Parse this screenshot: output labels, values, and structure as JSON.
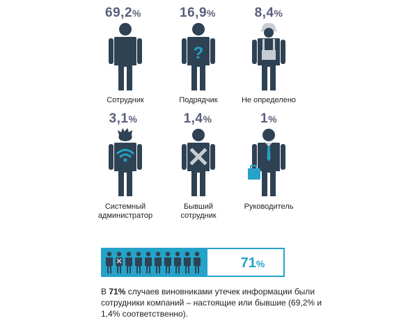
{
  "chart_data": {
    "type": "pictogram",
    "categories": [
      {
        "label": "Сотрудник",
        "value": 69.2,
        "display": "69,2",
        "icon": "employee-icon"
      },
      {
        "label": "Подрядчик",
        "value": 16.9,
        "display": "16,9",
        "icon": "contractor-question-icon"
      },
      {
        "label": "Не определено",
        "value": 8.4,
        "display": "8,4",
        "icon": "worker-helmet-icon"
      },
      {
        "label": "Системный администратор",
        "label_lines": [
          "Системный",
          "администратор"
        ],
        "value": 3.1,
        "display": "3,1",
        "icon": "sysadmin-wifi-icon"
      },
      {
        "label": "Бывший сотрудник",
        "label_lines": [
          "Бывший",
          "сотрудник"
        ],
        "value": 1.4,
        "display": "1,4",
        "icon": "former-employee-cross-icon"
      },
      {
        "label": "Руководитель",
        "value": 1,
        "display": "1",
        "icon": "manager-briefcase-icon"
      }
    ],
    "unit": "%",
    "summary_bar": {
      "value": 71,
      "display": "71",
      "people_count": 10,
      "highlight_color": "#25a3c8"
    }
  },
  "caption": {
    "prefix": "В ",
    "highlight": "71%",
    "rest": " случаев виновниками утечек информации были сотрудники компаний – настоящие или бывшие (69,2% и 1,4% соответственно)."
  },
  "colors": {
    "figure": "#2f4254",
    "accent": "#25a3c8",
    "percent_text": "#5b5f7d"
  }
}
